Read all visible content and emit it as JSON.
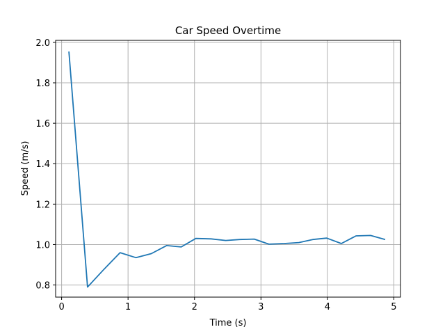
{
  "chart_data": {
    "type": "line",
    "title": "Car Speed Overtime",
    "xlabel": "Time (s)",
    "ylabel": "Speed (m/s)",
    "xlim": [
      -0.09,
      5.1
    ],
    "ylim": [
      0.74,
      2.01
    ],
    "xticks": [
      0,
      1,
      2,
      3,
      4,
      5
    ],
    "yticks": [
      0.8,
      1.0,
      1.2,
      1.4,
      1.6,
      1.8,
      2.0
    ],
    "xtick_labels": [
      "0",
      "1",
      "2",
      "3",
      "4",
      "5"
    ],
    "ytick_labels": [
      "0.8",
      "1.0",
      "1.2",
      "1.4",
      "1.6",
      "1.8",
      "2.0"
    ],
    "grid": true,
    "series": [
      {
        "color": "#1f77b4",
        "x": [
          0.11,
          0.39,
          0.63,
          0.88,
          1.12,
          1.35,
          1.58,
          1.8,
          2.02,
          2.25,
          2.47,
          2.68,
          2.9,
          3.12,
          3.35,
          3.57,
          3.78,
          3.99,
          4.21,
          4.43,
          4.65,
          4.87
        ],
        "y": [
          1.955,
          0.79,
          0.875,
          0.96,
          0.935,
          0.955,
          0.995,
          0.988,
          1.03,
          1.028,
          1.02,
          1.025,
          1.027,
          1.002,
          1.005,
          1.01,
          1.025,
          1.032,
          1.005,
          1.043,
          1.045,
          1.025
        ]
      }
    ]
  }
}
